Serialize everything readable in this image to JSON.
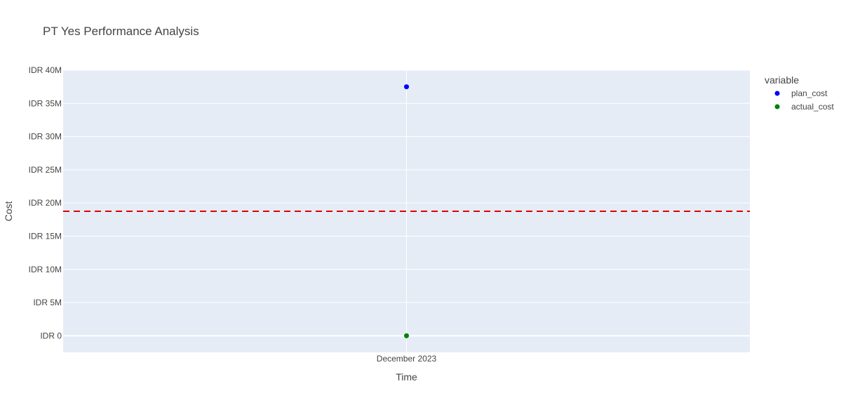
{
  "chart_data": {
    "type": "scatter",
    "title": "PT Yes Performance Analysis",
    "xlabel": "Time",
    "ylabel": "Cost",
    "x": [
      "December 2023"
    ],
    "series": [
      {
        "name": "plan_cost",
        "values": [
          37500000
        ],
        "color": "#0000ff"
      },
      {
        "name": "actual_cost",
        "values": [
          0
        ],
        "color": "#008000"
      }
    ],
    "ylim": [
      -2500000,
      40000000
    ],
    "yticks": [
      0,
      5000000,
      10000000,
      15000000,
      20000000,
      25000000,
      30000000,
      35000000,
      40000000
    ],
    "ytick_labels": [
      "IDR 0",
      "IDR 5M",
      "IDR 10M",
      "IDR 15M",
      "IDR 20M",
      "IDR 25M",
      "IDR 30M",
      "IDR 35M",
      "IDR 40M"
    ],
    "reference_line": {
      "y": 18750000,
      "style": "dashed",
      "color": "#e00000"
    },
    "legend": {
      "title": "variable",
      "placement": "top-right-outside"
    },
    "grid": true,
    "colors": {
      "plot_bg": "#e5ecf6",
      "grid": "#ffffff",
      "text": "#444444"
    }
  }
}
